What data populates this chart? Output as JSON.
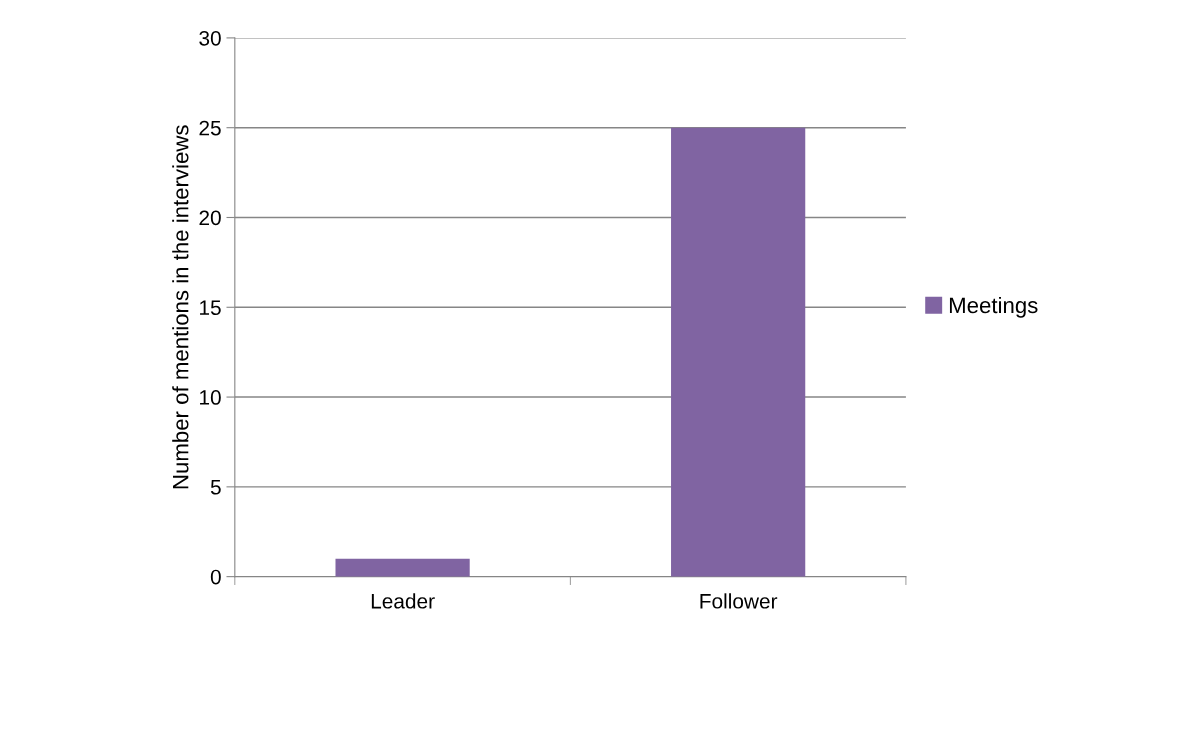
{
  "chart_data": {
    "type": "bar",
    "ylabel": "Number of mentions in the interviews",
    "categories": [
      "Leader",
      "Follower"
    ],
    "series": [
      {
        "name": "Meetings",
        "color": "#8064a2",
        "values": [
          1,
          25
        ]
      }
    ],
    "ylim": [
      0,
      30
    ],
    "yticks": [
      0,
      5,
      10,
      15,
      20,
      25,
      30
    ],
    "grid": "y",
    "legend": "right"
  }
}
